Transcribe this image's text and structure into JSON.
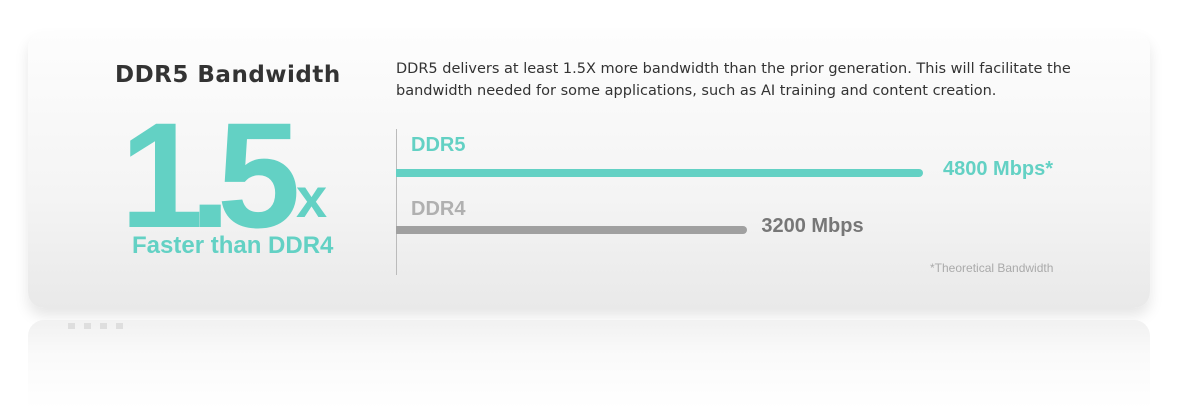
{
  "header": {
    "title": "DDR5 Bandwidth",
    "description": "DDR5 delivers at least 1.5X more bandwidth than the prior generation. This will facilitate the bandwidth needed for some applications, such as AI training and content creation."
  },
  "highlight": {
    "value": "1.5",
    "suffix": "x",
    "caption": "Faster than DDR4"
  },
  "chart_data": {
    "type": "bar",
    "orientation": "horizontal",
    "categories": [
      "DDR5",
      "DDR4"
    ],
    "values": [
      4800,
      3200
    ],
    "value_labels": [
      "4800 Mbps*",
      "3200 Mbps"
    ],
    "unit": "Mbps",
    "colors": [
      "#63d1c4",
      "#a0a0a0"
    ],
    "label_colors": [
      "#63d1c4",
      "#b0b0b0"
    ],
    "value_label_colors": [
      "#63d1c4",
      "#777777"
    ],
    "xlim": [
      0,
      4800
    ],
    "grid": false,
    "footnote": "*Theoretical Bandwidth"
  }
}
